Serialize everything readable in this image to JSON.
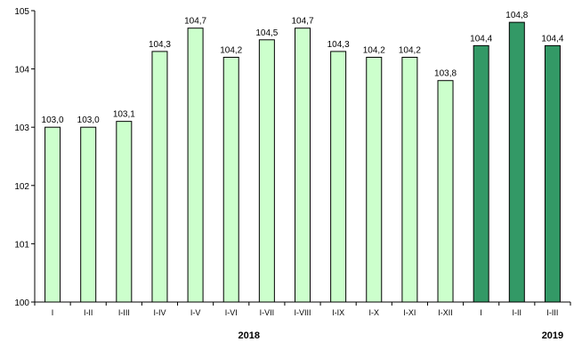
{
  "chart_data": {
    "type": "bar",
    "title": "",
    "xlabel": "",
    "ylabel": "",
    "ylim": [
      100,
      105
    ],
    "yticks": [
      "100",
      "101",
      "102",
      "103",
      "104",
      "105"
    ],
    "grid": false,
    "legend": "none",
    "categories": [
      "I",
      "I-II",
      "I-III",
      "I-IV",
      "I-V",
      "I-VI",
      "I-VII",
      "I-VIII",
      "I-IX",
      "I-X",
      "I-XI",
      "I-XII",
      "I",
      "I-II",
      "I-III"
    ],
    "values": [
      103.0,
      103.0,
      103.1,
      104.3,
      104.7,
      104.2,
      104.5,
      104.7,
      104.3,
      104.2,
      104.2,
      103.8,
      104.4,
      104.8,
      104.4
    ],
    "value_labels": [
      "103,0",
      "103,0",
      "103,1",
      "104,3",
      "104,7",
      "104,2",
      "104,5",
      "104,7",
      "104,3",
      "104,2",
      "104,2",
      "103,8",
      "104,4",
      "104,8",
      "104,4"
    ],
    "groups": [
      {
        "label": "2018",
        "start": 0,
        "count": 12,
        "color": "#ccffcc"
      },
      {
        "label": "2019",
        "start": 12,
        "count": 3,
        "color": "#339966"
      }
    ]
  }
}
